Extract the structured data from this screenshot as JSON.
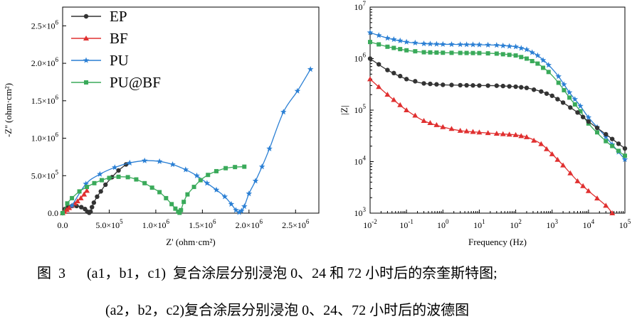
{
  "chart_data": [
    {
      "type": "scatter",
      "panel": "nyquist",
      "xlabel": "Z' (ohm·cm²)",
      "ylabel": "-Z'' (ohm·cm²)",
      "xlim": [
        0,
        2750000
      ],
      "ylim": [
        0,
        2750000
      ],
      "x_ticks": [
        0,
        500000,
        1000000,
        1500000,
        2000000,
        2500000
      ],
      "x_tick_labels": [
        "0.0",
        "5.0×10⁵",
        "1.0×10⁶",
        "1.5×10⁶",
        "2.0×10⁶",
        "2.5×10⁶"
      ],
      "y_ticks": [
        0,
        500000,
        1000000,
        1500000,
        2000000,
        2500000
      ],
      "y_tick_labels": [
        "0.0",
        "5.0×10⁵",
        "1.0×10⁶",
        "1.5×10⁶",
        "2.0×10⁶",
        "2.5×10⁶"
      ],
      "legend": "top-left",
      "grid": false,
      "series": [
        {
          "name": "EP",
          "color": "#333333",
          "marker": "circle",
          "x": [
            0,
            25000,
            60000,
            100000,
            150000,
            200000,
            240000,
            265000,
            285000,
            300000,
            315000,
            335000,
            370000,
            410000,
            460000,
            530000,
            600000,
            680000
          ],
          "y": [
            0,
            55000,
            80000,
            95000,
            95000,
            80000,
            55000,
            20000,
            5000,
            20000,
            80000,
            140000,
            220000,
            290000,
            380000,
            480000,
            570000,
            650000
          ]
        },
        {
          "name": "BF",
          "color": "#e03030",
          "marker": "triangle",
          "x": [
            0,
            20000,
            45000,
            70000,
            100000,
            130000,
            160000,
            195000,
            230000,
            260000
          ],
          "y": [
            0,
            20000,
            45000,
            70000,
            100000,
            130000,
            160000,
            200000,
            250000,
            300000
          ]
        },
        {
          "name": "PU",
          "color": "#2a7fd4",
          "marker": "star",
          "x": [
            100000,
            250000,
            400000,
            560000,
            720000,
            880000,
            1040000,
            1180000,
            1320000,
            1440000,
            1550000,
            1650000,
            1740000,
            1810000,
            1860000,
            1895000,
            1920000,
            1950000,
            2000000,
            2070000,
            2140000,
            2220000,
            2370000,
            2520000,
            2660000
          ],
          "y": [
            100000,
            390000,
            520000,
            610000,
            670000,
            700000,
            690000,
            650000,
            580000,
            500000,
            400000,
            310000,
            220000,
            120000,
            40000,
            10000,
            30000,
            90000,
            260000,
            430000,
            620000,
            860000,
            1350000,
            1630000,
            1920000
          ]
        },
        {
          "name": "PU@BF",
          "color": "#3aaa5a",
          "marker": "square",
          "x": [
            0,
            50000,
            100000,
            180000,
            260000,
            340000,
            420000,
            500000,
            600000,
            700000,
            790000,
            880000,
            960000,
            1040000,
            1110000,
            1170000,
            1210000,
            1240000,
            1255000,
            1270000,
            1300000,
            1340000,
            1410000,
            1480000,
            1560000,
            1650000,
            1750000,
            1850000,
            1950000
          ],
          "y": [
            0,
            130000,
            200000,
            290000,
            350000,
            400000,
            440000,
            470000,
            485000,
            480000,
            450000,
            400000,
            340000,
            280000,
            200000,
            120000,
            60000,
            20000,
            5000,
            40000,
            150000,
            250000,
            350000,
            440000,
            510000,
            560000,
            600000,
            615000,
            620000
          ]
        }
      ]
    },
    {
      "type": "line",
      "panel": "bode",
      "xlabel": "Frequency (Hz)",
      "ylabel": "|Z|",
      "x_scale": "log",
      "y_scale": "log",
      "xlim": [
        0.01,
        100000
      ],
      "ylim": [
        1000,
        10000000
      ],
      "x_tick_labels": [
        "10⁻²",
        "10⁻¹",
        "10⁰",
        "10¹",
        "10²",
        "10³",
        "10⁴",
        "10⁵"
      ],
      "y_tick_labels": [
        "10³",
        "10⁴",
        "10⁵",
        "10⁶",
        "10⁷"
      ],
      "grid": false,
      "series": [
        {
          "name": "PU",
          "color": "#2a7fd4",
          "marker": "star",
          "x": [
            0.01,
            0.03,
            0.1,
            0.3,
            1,
            3,
            10,
            30,
            100,
            200,
            400,
            800,
            1500,
            3000,
            6000,
            10000,
            30000,
            100000
          ],
          "y": [
            3200000,
            2500000,
            2100000,
            1950000,
            1900000,
            1880000,
            1860000,
            1820000,
            1700000,
            1500000,
            1150000,
            750000,
            450000,
            220000,
            120000,
            72000,
            30000,
            11000
          ]
        },
        {
          "name": "PU@BF",
          "color": "#3aaa5a",
          "marker": "square",
          "x": [
            0.01,
            0.03,
            0.1,
            0.3,
            1,
            3,
            10,
            30,
            100,
            200,
            400,
            800,
            1500,
            3000,
            6000,
            10000,
            30000,
            100000
          ],
          "y": [
            2100000,
            1700000,
            1450000,
            1330000,
            1300000,
            1290000,
            1280000,
            1250000,
            1150000,
            1000000,
            800000,
            550000,
            340000,
            175000,
            95000,
            55000,
            25000,
            13000
          ]
        },
        {
          "name": "EP",
          "color": "#333333",
          "marker": "circle",
          "x": [
            0.01,
            0.03,
            0.1,
            0.3,
            1,
            3,
            10,
            30,
            100,
            200,
            500,
            1000,
            2000,
            5000,
            10000,
            30000,
            100000
          ],
          "y": [
            1000000,
            600000,
            400000,
            330000,
            310000,
            305000,
            300000,
            298000,
            285000,
            270000,
            230000,
            190000,
            140000,
            90000,
            60000,
            34000,
            18000
          ]
        },
        {
          "name": "BF",
          "color": "#e03030",
          "marker": "triangle",
          "x": [
            0.01,
            0.03,
            0.1,
            0.3,
            1,
            3,
            10,
            30,
            100,
            200,
            500,
            1000,
            2000,
            5000,
            10000,
            30000,
            45000
          ],
          "y": [
            400000,
            200000,
            100000,
            62000,
            47000,
            40000,
            37000,
            35000,
            33000,
            30000,
            22000,
            14000,
            8500,
            4200,
            2700,
            1400,
            1000
          ]
        }
      ]
    }
  ],
  "caption": {
    "line1": "图  3      (a1，b1，c1)  复合涂层分别浸泡 0、24 和 72 小时后的奈奎斯特图;",
    "line2": "(a2，b2，c2)复合涂层分别浸泡 0、24、72 小时后的波德图"
  }
}
